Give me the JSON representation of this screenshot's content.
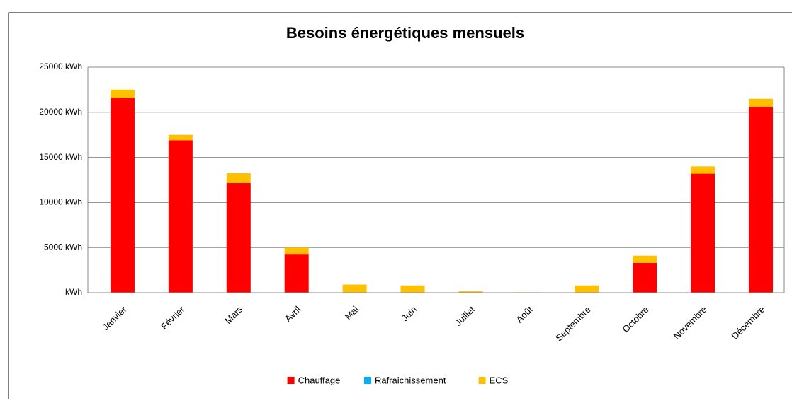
{
  "chart_data": {
    "type": "stacked_bar",
    "title": "Besoins énergétiques mensuels",
    "categories": [
      "Janvier",
      "Février",
      "Mars",
      "Avril",
      "Mai",
      "Juin",
      "Juillet",
      "Août",
      "Septembre",
      "Octobre",
      "Novembre",
      "Décembre"
    ],
    "series": [
      {
        "name": "Chauffage",
        "color": "#ff0000",
        "values": [
          21600,
          16900,
          12150,
          4300,
          0,
          0,
          0,
          0,
          0,
          3300,
          13200,
          20600
        ]
      },
      {
        "name": "Rafraichissement",
        "color": "#00b0f0",
        "values": [
          0,
          0,
          0,
          0,
          0,
          0,
          0,
          0,
          0,
          0,
          0,
          0
        ]
      },
      {
        "name": "ECS",
        "color": "#ffc000",
        "values": [
          900,
          600,
          1100,
          700,
          900,
          800,
          150,
          50,
          800,
          800,
          800,
          900
        ]
      }
    ],
    "ylim": [
      0,
      25000
    ],
    "yticks": [
      {
        "value": 0,
        "label": "kWh"
      },
      {
        "value": 5000,
        "label": "5000 kWh"
      },
      {
        "value": 10000,
        "label": "10000 kWh"
      },
      {
        "value": 15000,
        "label": "15000 kWh"
      },
      {
        "value": 20000,
        "label": "20000 kWh"
      },
      {
        "value": 25000,
        "label": "25000 kWh"
      }
    ],
    "grid": true,
    "legend": "bottom"
  }
}
